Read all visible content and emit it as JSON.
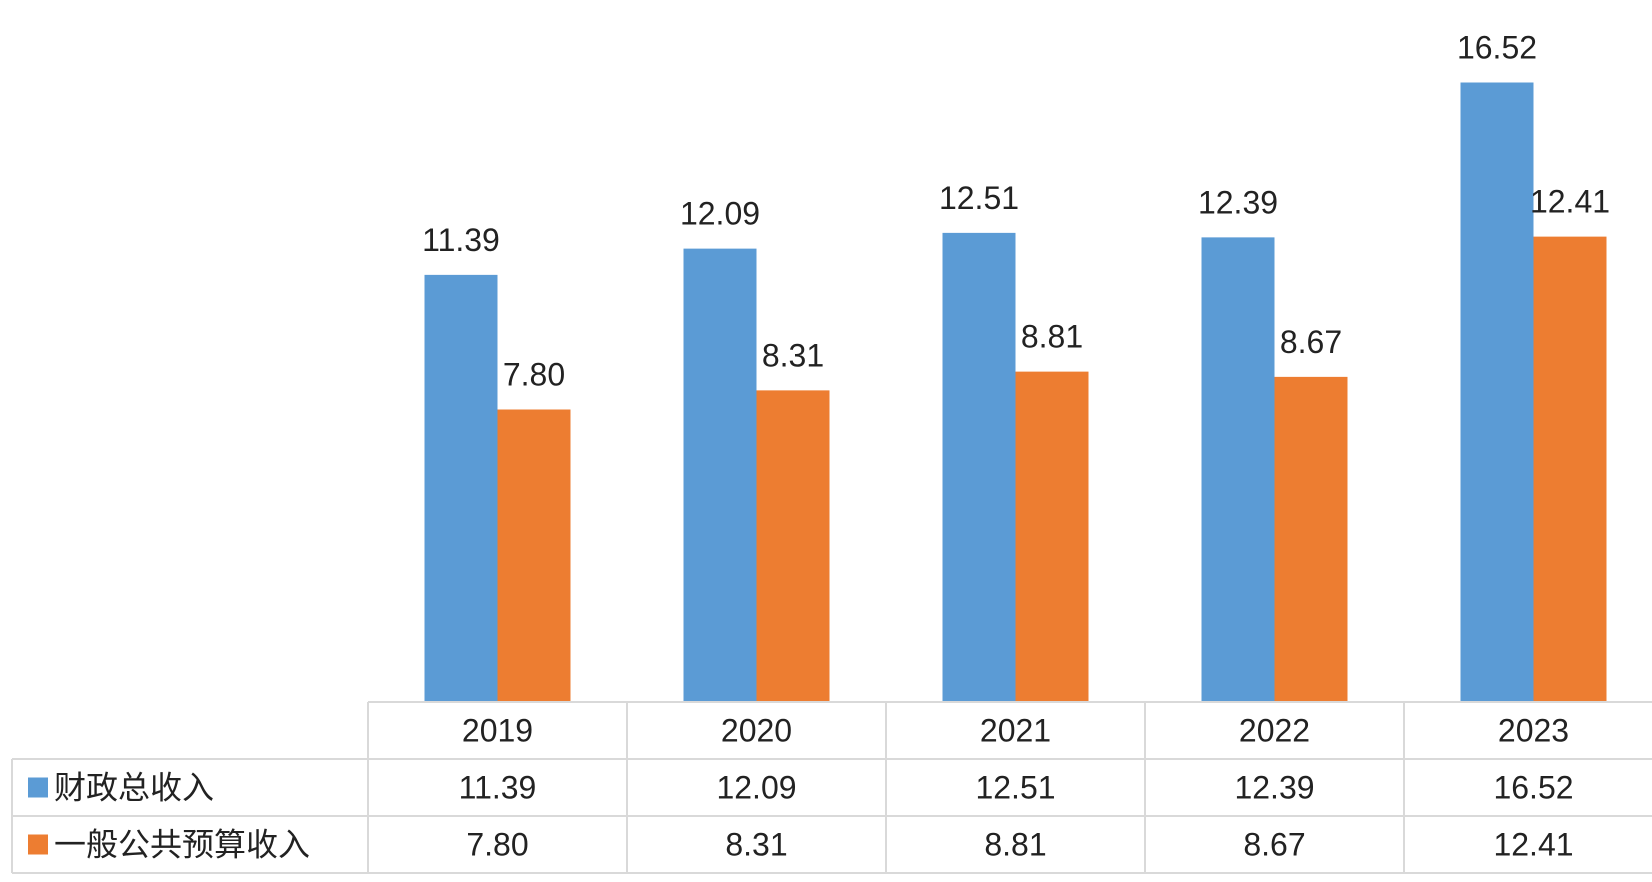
{
  "chart_data": {
    "type": "bar",
    "categories": [
      "2019",
      "2020",
      "2021",
      "2022",
      "2023"
    ],
    "series": [
      {
        "name": "财政总收入",
        "values": [
          11.39,
          12.09,
          12.51,
          12.39,
          16.52
        ],
        "color": "#5B9BD5",
        "labels": [
          "11.39",
          "12.09",
          "12.51",
          "12.39",
          "16.52"
        ]
      },
      {
        "name": "一般公共预算收入",
        "values": [
          7.8,
          8.31,
          8.81,
          8.67,
          12.41
        ],
        "color": "#ED7D31",
        "labels": [
          "7.80",
          "8.31",
          "8.81",
          "8.67",
          "12.41"
        ]
      }
    ],
    "data_table": true,
    "gridlines": false,
    "legend": "in data table"
  }
}
